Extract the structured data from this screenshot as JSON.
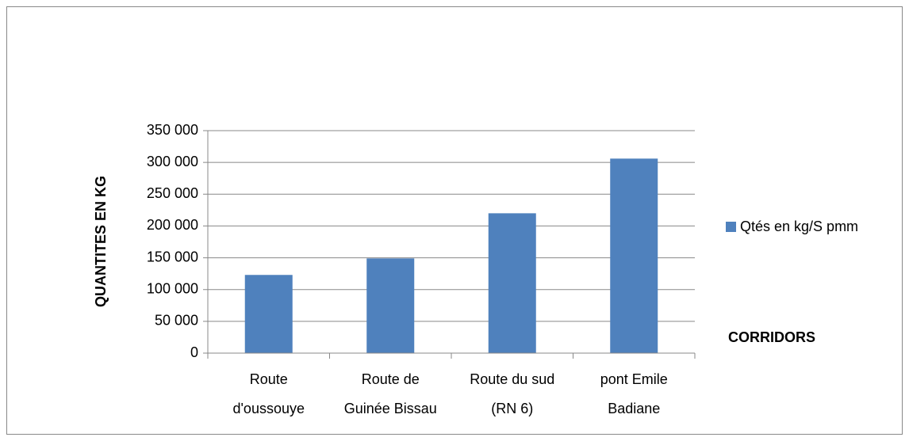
{
  "chart_data": {
    "type": "bar",
    "y_label": "QUANTITES EN KG",
    "x_label": "CORRIDORS",
    "categories": [
      "Route\nd'oussouye",
      "Route de\nGuinée Bissau",
      "Route du sud\n(RN 6)",
      "pont Emile\nBadiane"
    ],
    "series": [
      {
        "name": "Qtés en kg/S pmm",
        "color": "#4f81bd",
        "values": [
          123000,
          149000,
          220000,
          306000
        ]
      }
    ],
    "ylim": [
      0,
      350000
    ],
    "yticks": [
      0,
      {
        "value": 50000,
        "label": "50 000"
      },
      {
        "value": 100000,
        "label": "100 000"
      },
      {
        "value": 150000,
        "label": "150 000"
      },
      {
        "value": 200000,
        "label": "200 000"
      },
      {
        "value": 250000,
        "label": "250 000"
      },
      {
        "value": 300000,
        "label": "300 000"
      },
      {
        "value": 350000,
        "label": "350 000"
      }
    ],
    "grid": true,
    "legend": "right"
  }
}
